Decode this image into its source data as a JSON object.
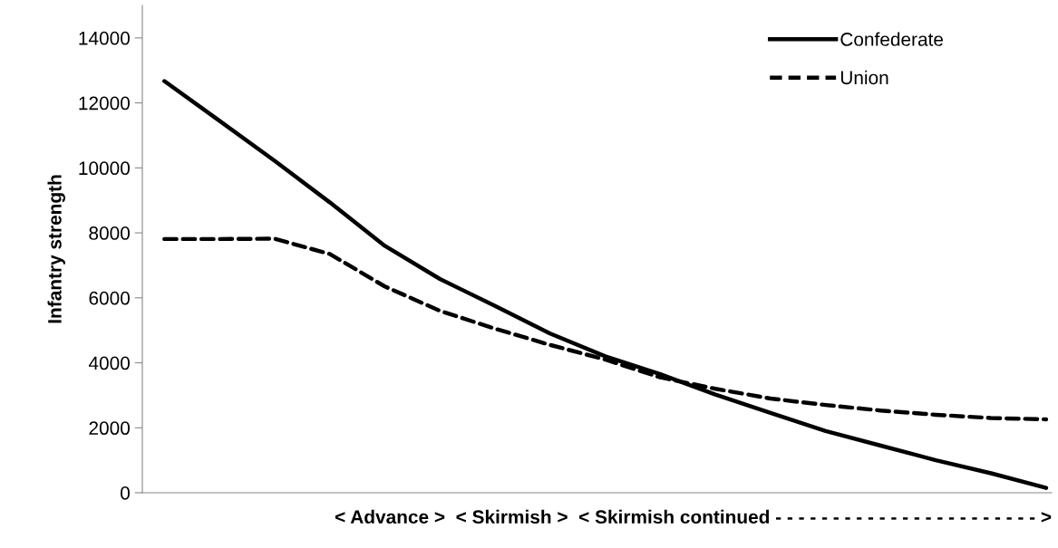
{
  "chart_data": {
    "type": "line",
    "xlabel": "< Advance >  < Skirmish >  < Skirmish continued - - - - - - - - - - - - - - - - - - - - - - - >",
    "ylabel": "Infantry strength",
    "categories": [
      null,
      null,
      null,
      null,
      null,
      null,
      null,
      null,
      null,
      null,
      null,
      null,
      null,
      null,
      null,
      null,
      null
    ],
    "series": [
      {
        "name": "Confederate",
        "color": "#000000",
        "line_style": "solid",
        "values": [
          12670,
          11450,
          10220,
          8940,
          7600,
          6580,
          5750,
          4900,
          4200,
          3650,
          3020,
          2460,
          1900,
          1450,
          1000,
          600,
          150
        ]
      },
      {
        "name": "Union",
        "color": "#000000",
        "line_style": "dashed",
        "values": [
          7810,
          7810,
          7820,
          7350,
          6350,
          5600,
          5050,
          4550,
          4100,
          3550,
          3200,
          2900,
          2700,
          2530,
          2400,
          2300,
          2260
        ]
      }
    ],
    "ylim": [
      0,
      15000
    ],
    "yticks": [
      0,
      2000,
      4000,
      6000,
      8000,
      10000,
      12000,
      14000
    ],
    "grid": false,
    "legend": "top right",
    "marker": "none"
  }
}
